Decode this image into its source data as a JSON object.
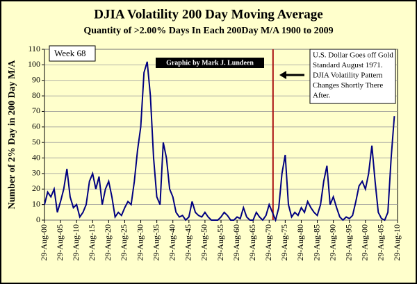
{
  "chart_data": {
    "type": "line",
    "title": "DJIA Volatility 200 Day Moving Average",
    "subtitle": "Quantity of >2.00% Days In Each 200Day M/A 1900 to 2009",
    "y_label": "Number of 2% Day in 200 Day M/A",
    "annotations": {
      "week": "Week 68",
      "credit": "Graphic by Mark J. Lundeen",
      "note": [
        "U.S. Dollar Goes off Gold",
        "Standard August 1971.",
        "DJIA Volatility Pattern",
        "Changes Shortly There",
        "After."
      ]
    },
    "vline": 1971.2,
    "vline_color": "#aa1111",
    "xlim": [
      1900,
      2010
    ],
    "xticks": [
      {
        "value": 1900,
        "label": "29-Aug-00"
      },
      {
        "value": 1905,
        "label": "29-Aug-05"
      },
      {
        "value": 1910,
        "label": "29-Aug-10"
      },
      {
        "value": 1915,
        "label": "29-Aug-15"
      },
      {
        "value": 1920,
        "label": "29-Aug-20"
      },
      {
        "value": 1925,
        "label": "29-Aug-25"
      },
      {
        "value": 1930,
        "label": "29-Aug-30"
      },
      {
        "value": 1935,
        "label": "29-Aug-35"
      },
      {
        "value": 1940,
        "label": "29-Aug-40"
      },
      {
        "value": 1945,
        "label": "29-Aug-45"
      },
      {
        "value": 1950,
        "label": "29-Aug-50"
      },
      {
        "value": 1955,
        "label": "29-Aug-55"
      },
      {
        "value": 1960,
        "label": "29-Aug-60"
      },
      {
        "value": 1965,
        "label": "29-Aug-65"
      },
      {
        "value": 1970,
        "label": "29-Aug-70"
      },
      {
        "value": 1975,
        "label": "29-Aug-75"
      },
      {
        "value": 1980,
        "label": "29-Aug-80"
      },
      {
        "value": 1985,
        "label": "29-Aug-85"
      },
      {
        "value": 1990,
        "label": "29-Aug-90"
      },
      {
        "value": 1995,
        "label": "29-Aug-95"
      },
      {
        "value": 2000,
        "label": "29-Aug-00"
      },
      {
        "value": 2005,
        "label": "29-Aug-05"
      },
      {
        "value": 2010,
        "label": "29-Aug-10"
      }
    ],
    "ylim": [
      0,
      110
    ],
    "yticks": [
      0,
      10,
      20,
      30,
      40,
      50,
      60,
      70,
      80,
      90,
      100,
      110
    ],
    "grid": true,
    "series": [
      {
        "color": "#000080",
        "x": [
          1900,
          1901,
          1902,
          1903,
          1904,
          1905,
          1906,
          1907,
          1908,
          1909,
          1910,
          1911,
          1912,
          1913,
          1914,
          1915,
          1916,
          1917,
          1918,
          1919,
          1920,
          1921,
          1922,
          1923,
          1924,
          1925,
          1926,
          1927,
          1928,
          1929,
          1930,
          1931,
          1932,
          1933,
          1934,
          1935,
          1936,
          1937,
          1938,
          1939,
          1940,
          1941,
          1942,
          1943,
          1944,
          1945,
          1946,
          1947,
          1948,
          1949,
          1950,
          1951,
          1952,
          1953,
          1954,
          1955,
          1956,
          1957,
          1958,
          1959,
          1960,
          1961,
          1962,
          1963,
          1964,
          1965,
          1966,
          1967,
          1968,
          1969,
          1970,
          1971,
          1972,
          1973,
          1974,
          1975,
          1976,
          1977,
          1978,
          1979,
          1980,
          1981,
          1982,
          1983,
          1984,
          1985,
          1986,
          1987,
          1988,
          1989,
          1990,
          1991,
          1992,
          1993,
          1994,
          1995,
          1996,
          1997,
          1998,
          1999,
          2000,
          2001,
          2002,
          2003,
          2004,
          2005,
          2006,
          2007,
          2008,
          2009
        ],
        "values": [
          10,
          18,
          15,
          20,
          5,
          12,
          20,
          33,
          15,
          8,
          10,
          2,
          5,
          10,
          25,
          30,
          20,
          28,
          10,
          20,
          25,
          15,
          2,
          5,
          3,
          8,
          12,
          10,
          25,
          45,
          60,
          95,
          102,
          80,
          40,
          15,
          10,
          50,
          40,
          20,
          15,
          5,
          2,
          3,
          0,
          2,
          12,
          5,
          3,
          2,
          5,
          2,
          0,
          0,
          0,
          2,
          5,
          3,
          0,
          0,
          2,
          1,
          8,
          2,
          0,
          0,
          5,
          2,
          0,
          3,
          10,
          5,
          0,
          8,
          30,
          42,
          10,
          2,
          5,
          3,
          8,
          5,
          12,
          8,
          5,
          3,
          10,
          25,
          35,
          10,
          15,
          8,
          2,
          0,
          2,
          1,
          3,
          12,
          22,
          25,
          20,
          30,
          48,
          25,
          5,
          1,
          0,
          5,
          40,
          67
        ]
      }
    ]
  }
}
